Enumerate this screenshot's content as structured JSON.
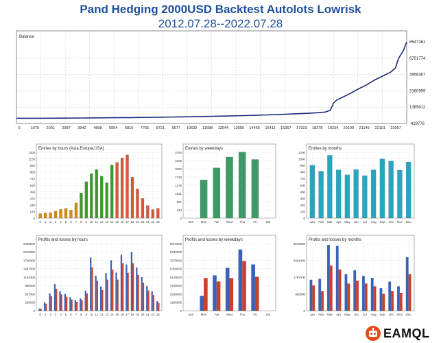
{
  "header": {
    "title": "Pand Hedging 2000USD Backtest Autolots Lowrisk",
    "subtitle": "2012.07.28--2022.07.28"
  },
  "brand": {
    "name": "EAMQL",
    "accent": "#e64b1c"
  },
  "colors": {
    "balance_line": "#1c2a7a",
    "hours_asia": "#d48a14",
    "hours_europe": "#3f9a2c",
    "hours_usa": "#d9573a",
    "weekdays": "#3f9a68",
    "months": "#2aa5bf",
    "profit": "#3a63b8",
    "loss": "#c9412c"
  },
  "chart_data": [
    {
      "id": "balance",
      "type": "line",
      "title": "Balance",
      "x_ticks": [
        "0",
        "1075",
        "2031",
        "2987",
        "3942",
        "4898",
        "5854",
        "6810",
        "7765",
        "8721",
        "9677",
        "10632",
        "11588",
        "12544",
        "13500",
        "14455",
        "15411",
        "16367",
        "17323",
        "18278",
        "19234",
        "20190",
        "21145",
        "22101",
        "23057"
      ],
      "y_ticks": [
        "8547161",
        "6751774",
        "4956387",
        "3160999",
        "1365612",
        "-429776"
      ],
      "ylim": [
        -429776,
        8547161
      ],
      "xlim": [
        0,
        24000
      ],
      "x": [
        0,
        1000,
        2000,
        3000,
        4000,
        5000,
        6000,
        7000,
        8000,
        9000,
        10000,
        11000,
        12000,
        13000,
        14000,
        15000,
        16000,
        17000,
        18000,
        18500,
        19000,
        19300,
        19500,
        19700,
        20000,
        20500,
        21000,
        21500,
        22000,
        22500,
        23000,
        23300,
        23500,
        23800,
        24000
      ],
      "y": [
        0,
        2000,
        8000,
        18000,
        30000,
        45000,
        62000,
        80000,
        100000,
        125000,
        150000,
        180000,
        215000,
        255000,
        300000,
        350000,
        410000,
        480000,
        560000,
        620000,
        700000,
        900000,
        1700000,
        2050000,
        2300000,
        2750000,
        3250000,
        3700000,
        4250000,
        4700000,
        5150000,
        5600000,
        6700000,
        7600000,
        8547161
      ]
    },
    {
      "id": "entries-hours",
      "type": "bar",
      "title": "Entries by hours (Asia,Europe,USA)",
      "categories": [
        "0",
        "1",
        "2",
        "3",
        "4",
        "5",
        "6",
        "7",
        "8",
        "9",
        "10",
        "11",
        "12",
        "13",
        "14",
        "15",
        "16",
        "17",
        "18",
        "19",
        "20",
        "21",
        "22",
        "23"
      ],
      "values": [
        90,
        105,
        110,
        140,
        175,
        195,
        160,
        300,
        500,
        720,
        880,
        960,
        830,
        700,
        1050,
        1100,
        1190,
        1250,
        810,
        580,
        390,
        250,
        170,
        195
      ],
      "y_ticks": [
        "1300",
        "1156",
        "992",
        "868",
        "744",
        "620",
        "496",
        "372",
        "248",
        "124",
        "0"
      ],
      "ylim": [
        0,
        1300
      ]
    },
    {
      "id": "entries-weekdays",
      "type": "bar",
      "title": "Entries by weekdays",
      "categories": [
        "Sun",
        "Mon",
        "Tue",
        "Wed",
        "Thu",
        "Fri",
        "Sat"
      ],
      "values": [
        0,
        1600,
        2100,
        2550,
        2760,
        2450,
        0
      ],
      "y_ticks": [
        "2750",
        "2405",
        "2062",
        "1718",
        "1375",
        "1031",
        "687",
        "343",
        "0"
      ],
      "ylim": [
        0,
        2750
      ]
    },
    {
      "id": "entries-months",
      "type": "bar",
      "title": "Entries by months",
      "categories": [
        "Jan",
        "Feb",
        "Mar",
        "Apr",
        "May",
        "Jun",
        "Jul",
        "Aug",
        "Sep",
        "Oct",
        "Nov",
        "Dec"
      ],
      "values": [
        965,
        855,
        1145,
        880,
        790,
        885,
        775,
        880,
        1080,
        1040,
        875,
        1025
      ],
      "y_ticks": [
        "1200",
        "1080",
        "960",
        "840",
        "720",
        "600",
        "480",
        "360",
        "240",
        "120",
        "0"
      ],
      "ylim": [
        0,
        1200
      ]
    },
    {
      "id": "pl-hours",
      "type": "bar",
      "title": "Profits and losses by hours",
      "categories": [
        "0",
        "1",
        "2",
        "3",
        "4",
        "5",
        "6",
        "7",
        "8",
        "9",
        "10",
        "11",
        "12",
        "13",
        "14",
        "15",
        "16",
        "17",
        "18",
        "19",
        "20",
        "21",
        "22",
        "23"
      ],
      "series": [
        {
          "name": "profit",
          "values": [
            80000,
            300000,
            620000,
            950000,
            700000,
            600000,
            480000,
            380000,
            440000,
            720000,
            1900000,
            1250000,
            870000,
            1340000,
            1800000,
            1360000,
            2000000,
            1650000,
            2100000,
            1540000,
            1200000,
            880000,
            700000,
            340000
          ]
        },
        {
          "name": "loss",
          "values": [
            70000,
            250000,
            520000,
            780000,
            580000,
            500000,
            400000,
            320000,
            380000,
            620000,
            1550000,
            1070000,
            740000,
            1110000,
            1470000,
            1110000,
            1700000,
            1350000,
            1700000,
            1280000,
            1000000,
            720000,
            560000,
            280000
          ]
        }
      ],
      "y_ticks": [
        "2398000",
        "2076000",
        "1790000",
        "1497000",
        "1194000",
        "896000",
        "597000",
        "298000",
        "0"
      ],
      "ylim": [
        0,
        2398000
      ]
    },
    {
      "id": "pl-weekdays",
      "type": "bar",
      "title": "Profits and losses by weekdays",
      "categories": [
        "Sun",
        "Mon",
        "Tue",
        "Wed",
        "Thu",
        "Fri",
        "Sat"
      ],
      "series": [
        {
          "name": "profit",
          "values": [
            0,
            2200000,
            5200000,
            6300000,
            9000000,
            6800000,
            0
          ]
        },
        {
          "name": "loss",
          "values": [
            0,
            4800000,
            4300000,
            4800000,
            7300000,
            5000000,
            0
          ]
        }
      ],
      "y_ticks": [
        "9874000",
        "8792000",
        "7570000",
        "6356000",
        "5140000",
        "3740000",
        "2568000",
        "1206000",
        "0"
      ],
      "ylim": [
        0,
        9874000
      ]
    },
    {
      "id": "pl-months",
      "type": "bar",
      "title": "Profits and losses by months",
      "categories": [
        "Jan",
        "Feb",
        "Mar",
        "Apr",
        "May",
        "Jun",
        "Jul",
        "Aug",
        "Sep",
        "Oct",
        "Nov",
        "Dec"
      ],
      "series": [
        {
          "name": "profit",
          "values": [
            1650000,
            1700000,
            3500000,
            3450000,
            1950000,
            2150000,
            1850000,
            1750000,
            1200000,
            1550000,
            1300000,
            2850000
          ]
        },
        {
          "name": "loss",
          "values": [
            1350000,
            1050000,
            2400000,
            2200000,
            1450000,
            1600000,
            1450000,
            1300000,
            900000,
            1050000,
            950000,
            1950000
          ]
        }
      ],
      "y_ticks": [
        "3575000",
        "2681000",
        "1787000",
        "893000",
        "0"
      ],
      "ylim": [
        0,
        3575000
      ]
    }
  ]
}
